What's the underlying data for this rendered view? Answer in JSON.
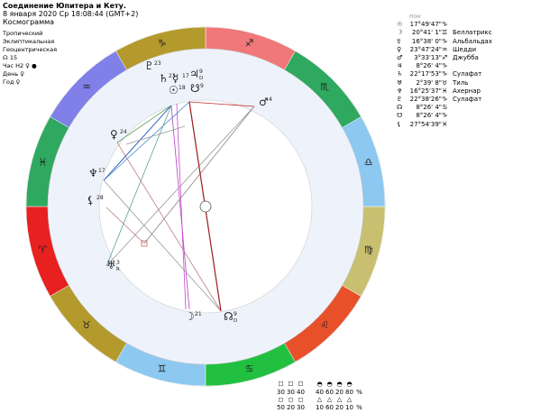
{
  "header": {
    "title": "Соединение Юпитера и Кету.",
    "date": "8 января 2020  Ср  18:08:44 (GMT+2)",
    "chart_kind": "Космограмма"
  },
  "settings": [
    "Тропический",
    "Эклиптикальная",
    "Геоцентрическая",
    "☊ 15",
    "Час Н2 ♀ ●",
    "День ♀",
    "Год ♀"
  ],
  "positions": {
    "header": "Ном",
    "rows": [
      [
        "☉",
        "17°49'47\"",
        "♑",
        ""
      ],
      [
        "☽",
        "20°41' 1\"",
        "♊",
        "Беллатрикс"
      ],
      [
        "☿",
        "16°38' 0\"",
        "♑",
        "Альбальдах"
      ],
      [
        "♀",
        "23°47'24\"",
        "♒",
        "Шедди"
      ],
      [
        "♂",
        "3°33'13\"",
        "♐",
        "Джубба"
      ],
      [
        "♃",
        "8°26' 4\"",
        "♑",
        ""
      ],
      [
        "♄",
        "22°17'53\"",
        "♑",
        "Сулафат"
      ],
      [
        "♅",
        "2°39' 8\"",
        "♉",
        "Тиль"
      ],
      [
        "♆",
        "16°25'37\"",
        "♓",
        "Ахернар"
      ],
      [
        "♇",
        "22°38'26\"",
        "♑",
        "Сулафат"
      ],
      [
        "☊",
        "8°26' 4\"",
        "♋",
        ""
      ],
      [
        "☋",
        "8°26' 4\"",
        "♑",
        ""
      ],
      [
        "⚸",
        "27°54'39\"",
        "♓",
        ""
      ]
    ]
  },
  "wheel": {
    "signs": [
      {
        "glyph": "♈",
        "color": "#e82020"
      },
      {
        "glyph": "♉",
        "color": "#b49a2c"
      },
      {
        "glyph": "♊",
        "color": "#8cc8f0"
      },
      {
        "glyph": "♋",
        "color": "#22c040"
      },
      {
        "glyph": "♌",
        "color": "#e8502a"
      },
      {
        "glyph": "♍",
        "color": "#c8c070"
      },
      {
        "glyph": "♎",
        "color": "#8cc8f0"
      },
      {
        "glyph": "♏",
        "color": "#2fa860"
      },
      {
        "glyph": "♐",
        "color": "#f07878"
      },
      {
        "glyph": "♑",
        "color": "#b49a2c"
      },
      {
        "glyph": "♒",
        "color": "#8080e8"
      },
      {
        "glyph": "♓",
        "color": "#2fa860"
      }
    ],
    "planets": [
      {
        "glyph": "♇",
        "degree": "23",
        "note": ""
      },
      {
        "glyph": "♄",
        "degree": "23",
        "note": ""
      },
      {
        "glyph": "☿",
        "degree": "17",
        "note": ""
      },
      {
        "glyph": "♃",
        "degree": "9",
        "note": "D"
      },
      {
        "glyph": "☉",
        "degree": "18",
        "note": ""
      },
      {
        "glyph": "☋",
        "degree": "9",
        "note": ""
      },
      {
        "glyph": "♂",
        "degree": "4",
        "note": ""
      },
      {
        "glyph": "♀",
        "degree": "24",
        "note": ""
      },
      {
        "glyph": "♆",
        "degree": "17",
        "note": ""
      },
      {
        "glyph": "⚸",
        "degree": "28",
        "note": ""
      },
      {
        "glyph": "♅",
        "degree": "3",
        "note": "R"
      },
      {
        "glyph": "☽",
        "degree": "21",
        "note": ""
      },
      {
        "glyph": "☊",
        "degree": "9",
        "note": "D"
      }
    ]
  },
  "balance": {
    "rows": [
      [
        "☐",
        "☐",
        "☐",
        "◓",
        "◓",
        "◓",
        "◓",
        ""
      ],
      [
        "30",
        "30",
        "40",
        "40",
        "60",
        "20",
        "80",
        "%"
      ],
      [
        "◻",
        "◻",
        "◻",
        "△",
        "△",
        "△",
        "△",
        ""
      ],
      [
        "50",
        "20",
        "30",
        "10",
        "60",
        "20",
        "10",
        "%"
      ]
    ]
  }
}
